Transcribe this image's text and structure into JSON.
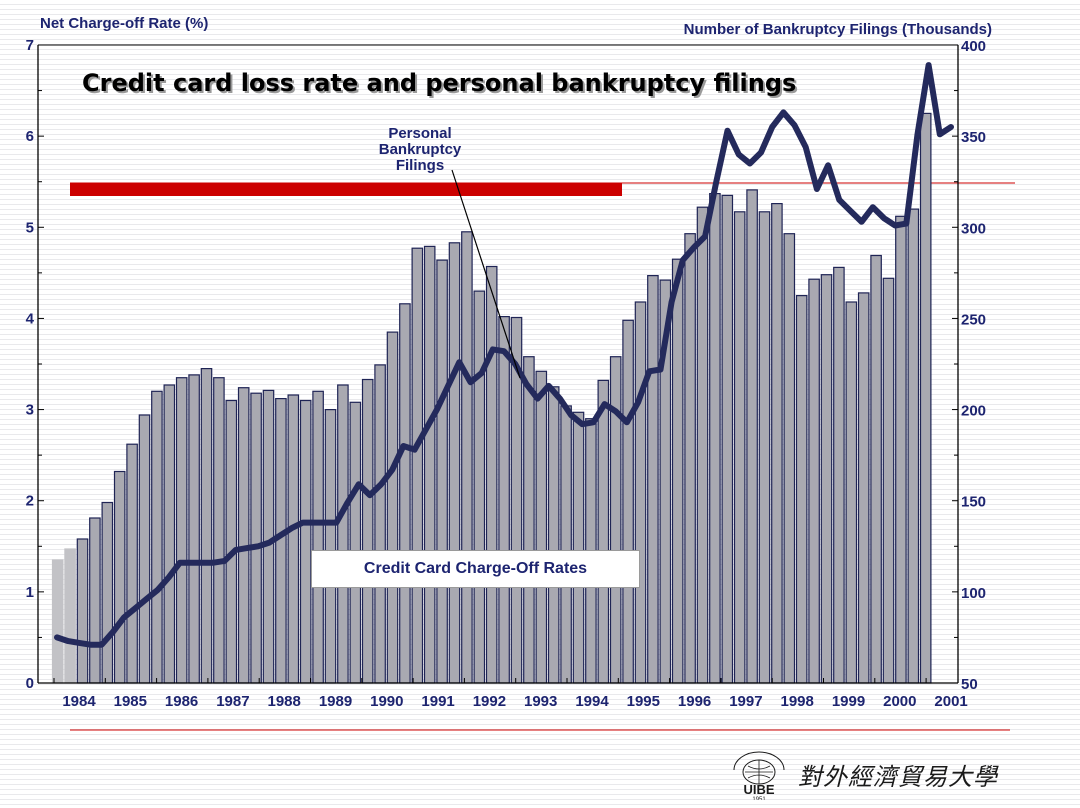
{
  "chart_data": {
    "type": "bar",
    "title": "Credit card loss rate and personal bankruptcy filings",
    "ylabel_left": "Net Charge-off Rate (%)",
    "ylabel_right": "Number of Bankruptcy Filings (Thousands)",
    "ylim_left": [
      0,
      7
    ],
    "ylim_right": [
      50,
      400
    ],
    "yticks_left": [
      "0",
      "1",
      "2",
      "3",
      "4",
      "5",
      "6",
      "7"
    ],
    "yticks_right": [
      "50",
      "100",
      "150",
      "200",
      "250",
      "300",
      "350",
      "400"
    ],
    "x_labels": [
      "1984",
      "1985",
      "1986",
      "1987",
      "1988",
      "1989",
      "1990",
      "1991",
      "1992",
      "1993",
      "1994",
      "1995",
      "1996",
      "1997",
      "1998",
      "1999",
      "2000",
      "2001"
    ],
    "grid": false,
    "series": [
      {
        "name": "Credit Card Charge-Off Rates",
        "kind": "bar",
        "axis": "left",
        "values": [
          1.35,
          1.47,
          1.58,
          1.81,
          1.98,
          2.32,
          2.62,
          2.94,
          3.2,
          3.27,
          3.35,
          3.38,
          3.45,
          3.35,
          3.1,
          3.24,
          3.18,
          3.21,
          3.12,
          3.16,
          3.1,
          3.2,
          3.0,
          3.27,
          3.08,
          3.33,
          3.49,
          3.85,
          4.16,
          4.77,
          4.79,
          4.64,
          4.83,
          4.95,
          4.3,
          4.57,
          4.02,
          4.01,
          3.58,
          3.42,
          3.25,
          3.04,
          2.97,
          2.9,
          3.32,
          3.58,
          3.98,
          4.18,
          4.47,
          4.42,
          4.65,
          4.93,
          5.22,
          5.37,
          5.35,
          5.17,
          5.41,
          5.17,
          5.26,
          4.93,
          4.25,
          4.43,
          4.48,
          4.56,
          4.18,
          4.28,
          4.69,
          4.44,
          5.12,
          5.2,
          6.25
        ]
      },
      {
        "name": "Personal Bankruptcy Filings",
        "kind": "line",
        "axis": "right",
        "values": [
          75,
          73,
          72,
          71,
          71,
          78,
          86,
          91,
          96,
          101,
          108,
          116,
          116,
          116,
          116,
          117,
          123,
          124,
          125,
          127,
          131,
          135,
          138,
          138,
          138,
          138,
          149,
          159,
          153,
          159,
          167,
          180,
          178,
          189,
          200,
          213,
          226,
          215,
          220,
          233,
          232,
          225,
          214,
          206,
          213,
          206,
          197,
          192,
          193,
          203,
          199,
          193,
          204,
          221,
          222,
          259,
          282,
          289,
          295,
          325,
          353,
          340,
          335,
          341,
          355,
          363,
          356,
          344,
          321,
          334,
          315,
          309,
          303,
          311,
          305,
          301,
          302,
          351,
          389,
          351,
          355
        ]
      }
    ],
    "annotations": {
      "bankruptcy_label": [
        "Personal",
        "Bankruptcy",
        "Filings"
      ],
      "chargeoff_label": "Credit Card Charge-Off Rates"
    },
    "colors": {
      "bar_fill": "#a9a9b1",
      "bar_edge": "#1f2455",
      "line": "#242a5c",
      "accent_red": "#cc0000",
      "axis_text": "#1d2470"
    }
  },
  "footer": {
    "logo_abbrev": "UIBE",
    "logo_year": "1951",
    "university_name": "對外經濟貿易大學"
  }
}
